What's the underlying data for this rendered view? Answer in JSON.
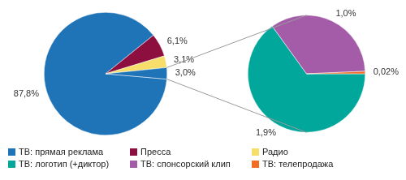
{
  "chart_data": [
    {
      "type": "pie",
      "categories": [
        "ТВ: прямая реклама",
        "Пресса",
        "Радио",
        null
      ],
      "values": [
        87.8,
        6.1,
        3.1,
        3.0
      ],
      "value_labels": [
        "87,8%",
        "6,1%",
        "3,1%",
        "3,0%"
      ],
      "colors": [
        "#1f73b7",
        "#8c0f3f",
        "#f7de6b",
        "#1f73b7"
      ],
      "data_labels": true,
      "legend": "bottom"
    },
    {
      "type": "pie",
      "categories": [
        "ТВ: логотип (+диктор)",
        "ТВ: спонсорский клип",
        "ТВ: телепродажа"
      ],
      "values": [
        1.9,
        1.0,
        0.02
      ],
      "value_labels": [
        "1,9%",
        "1,0%",
        "0,02%"
      ],
      "colors": [
        "#00a79a",
        "#a45ca8",
        "#f26d21"
      ],
      "data_labels": true,
      "legend": "bottom"
    }
  ]
}
